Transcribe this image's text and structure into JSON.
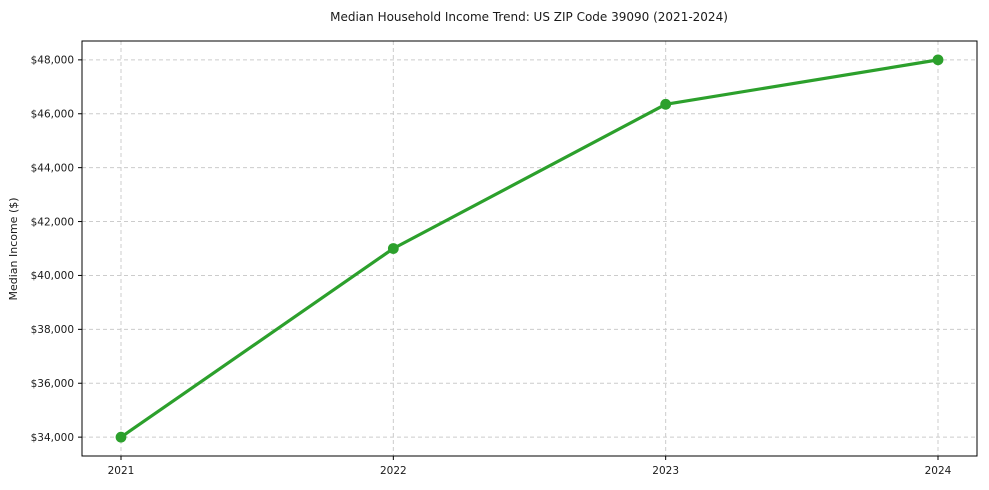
{
  "chart_data": {
    "type": "line",
    "title": "Median Household Income Trend: US ZIP Code 39090 (2021-2024)",
    "xlabel": "",
    "ylabel": "Median Income ($)",
    "categories": [
      "2021",
      "2022",
      "2023",
      "2024"
    ],
    "series": [
      {
        "name": "Median Income",
        "values": [
          34000,
          41000,
          46350,
          48000
        ],
        "color": "#2ca02c",
        "marker": "circle"
      }
    ],
    "y_ticks": [
      {
        "value": 34000,
        "label": "$34,000"
      },
      {
        "value": 36000,
        "label": "$36,000"
      },
      {
        "value": 38000,
        "label": "$38,000"
      },
      {
        "value": 40000,
        "label": "$40,000"
      },
      {
        "value": 42000,
        "label": "$42,000"
      },
      {
        "value": 44000,
        "label": "$44,000"
      },
      {
        "value": 46000,
        "label": "$46,000"
      },
      {
        "value": 48000,
        "label": "$48,000"
      }
    ],
    "ylim": [
      33300,
      48700
    ],
    "grid": true,
    "grid_style": "dashed",
    "grid_color": "#cccccc",
    "spine_color": "#000000",
    "text_color": "#1a1a1a",
    "background": "#ffffff",
    "legend_position": "none"
  }
}
